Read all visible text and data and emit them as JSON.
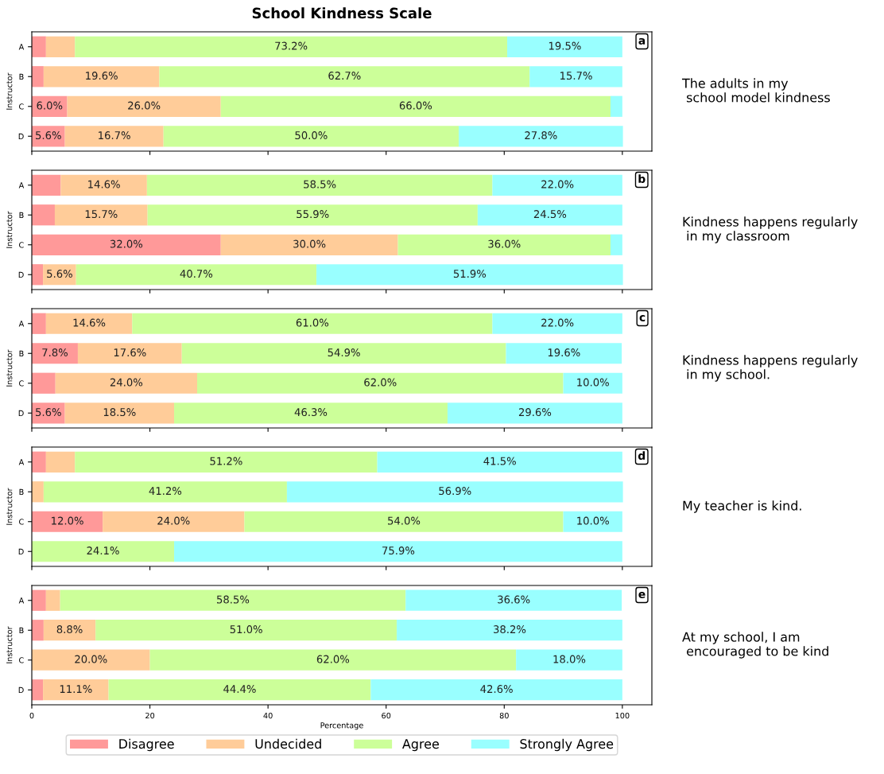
{
  "chart_data": [
    {
      "type": "bar",
      "orientation": "horizontal",
      "stacked": true,
      "title": "School Kindness Scale",
      "ylabel": "Instructor",
      "categories": [
        "A",
        "B",
        "C",
        "D"
      ],
      "xlim": [
        0,
        105
      ],
      "xticks": [
        0,
        20,
        40,
        60,
        80,
        100
      ],
      "tick_labels": "y",
      "annotations": [
        "a",
        "The adults in my\n school model kindness"
      ],
      "series": [
        {
          "color": "#ff9999",
          "values": [
            2.4,
            2.0,
            6.0,
            5.6
          ],
          "value_labels": [
            null,
            null,
            "6.0%",
            "5.6%"
          ]
        },
        {
          "color": "#ffcc99",
          "values": [
            4.9,
            19.6,
            26.0,
            16.7
          ],
          "value_labels": [
            null,
            "19.6%",
            "26.0%",
            "16.7%"
          ]
        },
        {
          "color": "#ccff99",
          "values": [
            73.2,
            62.7,
            66.0,
            50.0
          ],
          "value_labels": [
            "73.2%",
            "62.7%",
            "66.0%",
            "50.0%"
          ]
        },
        {
          "color": "#99ffff",
          "values": [
            19.5,
            15.7,
            2.0,
            27.8
          ],
          "value_labels": [
            "19.5%",
            "15.7%",
            null,
            "27.8%"
          ]
        }
      ]
    },
    {
      "type": "bar",
      "orientation": "horizontal",
      "stacked": true,
      "ylabel": "Instructor",
      "categories": [
        "A",
        "B",
        "C",
        "D"
      ],
      "xlim": [
        0,
        105
      ],
      "xticks": [
        0,
        20,
        40,
        60,
        80,
        100
      ],
      "tick_labels": "y",
      "annotations": [
        "b",
        "Kindness happens regularly\n in my classroom"
      ],
      "series": [
        {
          "color": "#ff9999",
          "values": [
            4.9,
            3.9,
            32.0,
            1.9
          ],
          "value_labels": [
            null,
            null,
            "32.0%",
            null
          ]
        },
        {
          "color": "#ffcc99",
          "values": [
            14.6,
            15.7,
            30.0,
            5.6
          ],
          "value_labels": [
            "14.6%",
            "15.7%",
            "30.0%",
            "5.6%"
          ]
        },
        {
          "color": "#ccff99",
          "values": [
            58.5,
            55.9,
            36.0,
            40.7
          ],
          "value_labels": [
            "58.5%",
            "55.9%",
            "36.0%",
            "40.7%"
          ]
        },
        {
          "color": "#99ffff",
          "values": [
            22.0,
            24.5,
            2.0,
            51.9
          ],
          "value_labels": [
            "22.0%",
            "24.5%",
            null,
            "51.9%"
          ]
        }
      ]
    },
    {
      "type": "bar",
      "orientation": "horizontal",
      "stacked": true,
      "ylabel": "Instructor",
      "categories": [
        "A",
        "B",
        "C",
        "D"
      ],
      "xlim": [
        0,
        105
      ],
      "xticks": [
        0,
        20,
        40,
        60,
        80,
        100
      ],
      "tick_labels": "y",
      "annotations": [
        "c",
        "Kindness happens regularly\n in my school."
      ],
      "series": [
        {
          "color": "#ff9999",
          "values": [
            2.4,
            7.8,
            4.0,
            5.6
          ],
          "value_labels": [
            null,
            "7.8%",
            null,
            "5.6%"
          ]
        },
        {
          "color": "#ffcc99",
          "values": [
            14.6,
            17.6,
            24.0,
            18.5
          ],
          "value_labels": [
            "14.6%",
            "17.6%",
            "24.0%",
            "18.5%"
          ]
        },
        {
          "color": "#ccff99",
          "values": [
            61.0,
            54.9,
            62.0,
            46.3
          ],
          "value_labels": [
            "61.0%",
            "54.9%",
            "62.0%",
            "46.3%"
          ]
        },
        {
          "color": "#99ffff",
          "values": [
            22.0,
            19.6,
            10.0,
            29.6
          ],
          "value_labels": [
            "22.0%",
            "19.6%",
            "10.0%",
            "29.6%"
          ]
        }
      ]
    },
    {
      "type": "bar",
      "orientation": "horizontal",
      "stacked": true,
      "ylabel": "Instructor",
      "categories": [
        "A",
        "B",
        "C",
        "D"
      ],
      "xlim": [
        0,
        105
      ],
      "xticks": [
        0,
        20,
        40,
        60,
        80,
        100
      ],
      "tick_labels": "y",
      "annotations": [
        "d",
        "My teacher is kind."
      ],
      "series": [
        {
          "color": "#ff9999",
          "values": [
            2.4,
            0,
            12.0,
            0
          ],
          "value_labels": [
            null,
            null,
            "12.0%",
            null
          ]
        },
        {
          "color": "#ffcc99",
          "values": [
            4.9,
            2.0,
            24.0,
            0
          ],
          "value_labels": [
            null,
            null,
            "24.0%",
            null
          ]
        },
        {
          "color": "#ccff99",
          "values": [
            51.2,
            41.2,
            54.0,
            24.1
          ],
          "value_labels": [
            "51.2%",
            "41.2%",
            "54.0%",
            "24.1%"
          ]
        },
        {
          "color": "#99ffff",
          "values": [
            41.5,
            56.9,
            10.0,
            75.9
          ],
          "value_labels": [
            "41.5%",
            "56.9%",
            "10.0%",
            "75.9%"
          ]
        }
      ]
    },
    {
      "type": "bar",
      "orientation": "horizontal",
      "stacked": true,
      "ylabel": "Instructor",
      "xlabel": "Percentage",
      "categories": [
        "A",
        "B",
        "C",
        "D"
      ],
      "xlim": [
        0,
        105
      ],
      "xticks": [
        0,
        20,
        40,
        60,
        80,
        100
      ],
      "legend": "bottom",
      "annotations": [
        "e",
        "At my school, I am\n encouraged to be kind"
      ],
      "series": [
        {
          "name": "Disagree",
          "color": "#ff9999",
          "values": [
            2.4,
            2.0,
            0,
            1.9
          ],
          "value_labels": [
            null,
            null,
            null,
            null
          ]
        },
        {
          "name": "Undecided",
          "color": "#ffcc99",
          "values": [
            2.4,
            8.8,
            20.0,
            11.1
          ],
          "value_labels": [
            null,
            "8.8%",
            "20.0%",
            "11.1%"
          ]
        },
        {
          "name": "Agree",
          "color": "#ccff99",
          "values": [
            58.5,
            51.0,
            62.0,
            44.4
          ],
          "value_labels": [
            "58.5%",
            "51.0%",
            "62.0%",
            "44.4%"
          ]
        },
        {
          "name": "Strongly Agree",
          "color": "#99ffff",
          "values": [
            36.6,
            38.2,
            18.0,
            42.6
          ],
          "value_labels": [
            "36.6%",
            "38.2%",
            "18.0%",
            "42.6%"
          ]
        }
      ]
    }
  ]
}
